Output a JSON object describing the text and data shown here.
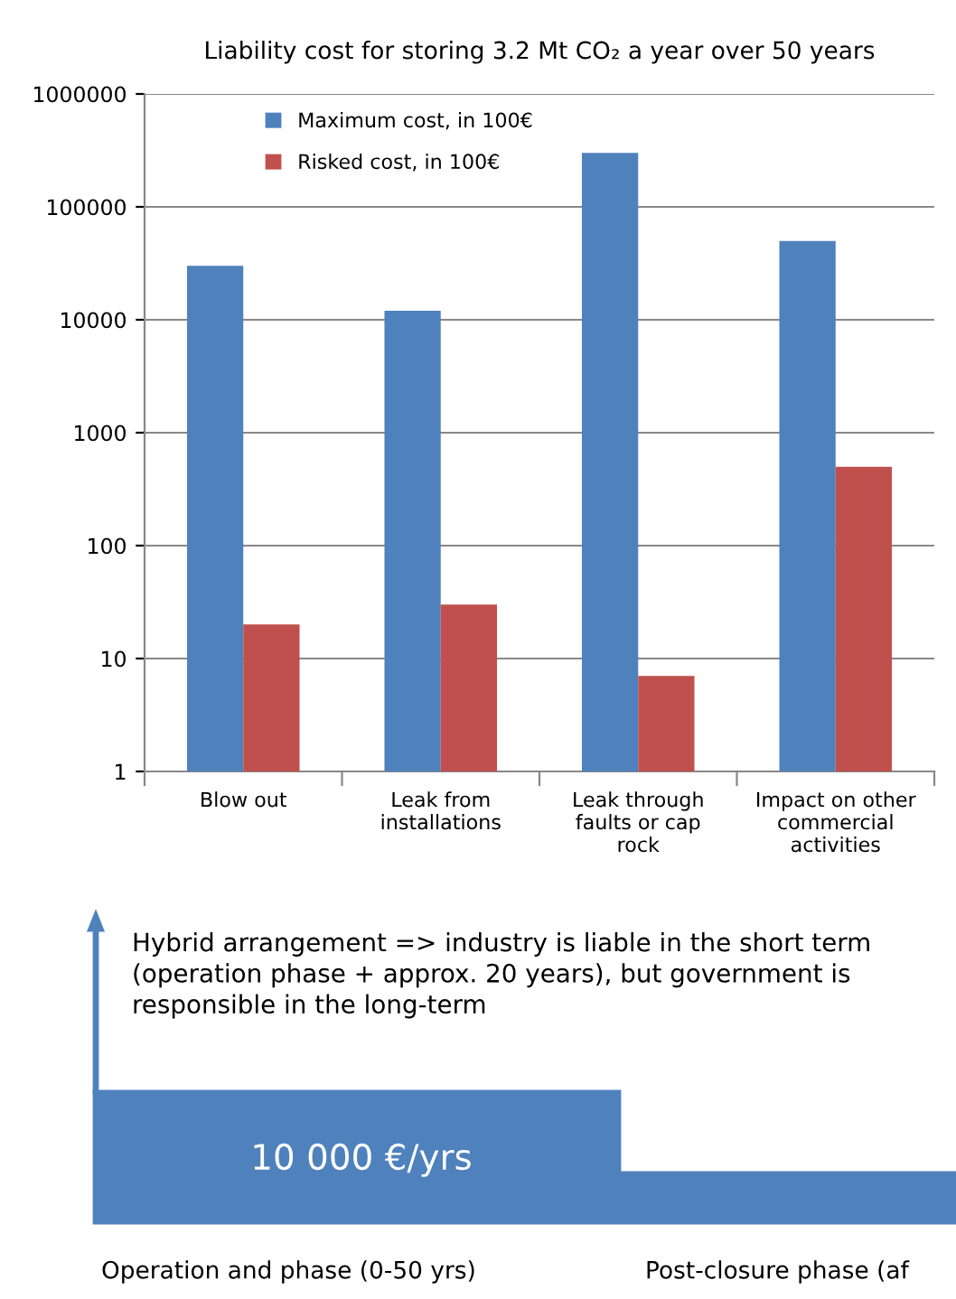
{
  "chart_data": {
    "type": "bar",
    "title": "Liability cost for storing 3.2 Mt CO₂ a year over 50 years",
    "categories": [
      "Blow out",
      "Leak from\ninstallations",
      "Leak through\nfaults or cap\nrock",
      "Impact on other\ncommercial\nactivities"
    ],
    "series": [
      {
        "name": "Maximum cost, in 100€",
        "color": "#4f81bd",
        "values": [
          30000,
          12000,
          300000,
          50000
        ]
      },
      {
        "name": "Risked cost, in 100€",
        "color": "#c0504d",
        "values": [
          20,
          30,
          7,
          500
        ]
      }
    ],
    "log": true,
    "ylim": [
      1,
      1000000
    ],
    "yticks": [
      1,
      10,
      100,
      1000,
      10000,
      100000,
      1000000
    ],
    "grid": "y",
    "legend": "top left",
    "annotations": [
      "Hybrid arrangement => industry is liable in the short term\n(operation phase + approx. 20 years), but government is\nresponsible in the long-term",
      "10 000 €/yrs",
      "Operation and phase (0-50 yrs)",
      "Post-closure phase (af"
    ]
  }
}
